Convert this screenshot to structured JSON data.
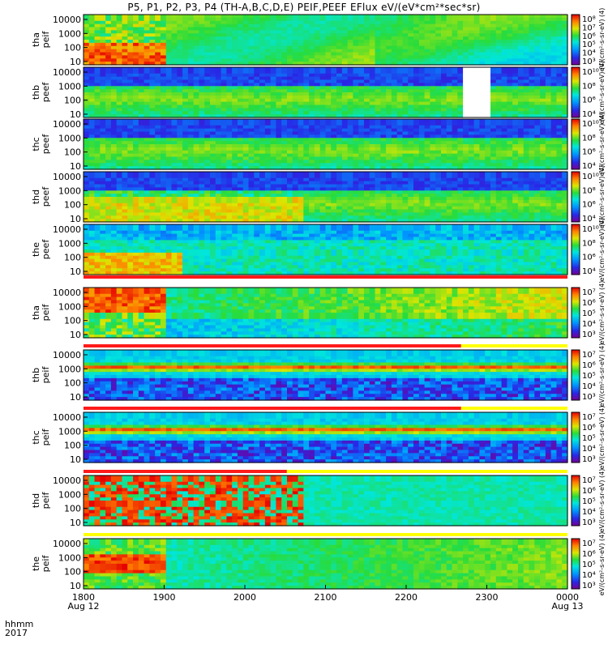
{
  "title": "P5, P1, P2, P3, P4 (TH-A,B,C,D,E) PEIF,PEEF EFlux eV/(eV*cm²*sec*sr)",
  "corner_labels": {
    "line1": "hhmm",
    "line2": "2017"
  },
  "colors": {
    "flag_red": "#ff1a1a",
    "flag_yellow": "#ffff00",
    "frame": "#000000"
  },
  "chart_data": {
    "type": "heatmap",
    "title": "P5, P1, P2, P3, P4 (TH-A,B,C,D,E) PEIF,PEEF EFlux eV/(eV*cm²*sec*sr)",
    "xlabel": "hhmm 2017",
    "x_ticks": [
      {
        "label": "1800",
        "sub": "Aug 12"
      },
      {
        "label": "1900",
        "sub": ""
      },
      {
        "label": "2000",
        "sub": ""
      },
      {
        "label": "2100",
        "sub": ""
      },
      {
        "label": "2200",
        "sub": ""
      },
      {
        "label": "2300",
        "sub": ""
      },
      {
        "label": "0000",
        "sub": "Aug 13"
      }
    ],
    "xlim": [
      "2017-08-12 18:00",
      "2017-08-13 00:00"
    ],
    "y_scale": "log",
    "colorbar_unit_label": "[eV/(cm²-s-sr-eV)]",
    "panels": [
      {
        "ylabel": [
          "tha",
          "peif"
        ],
        "y_ticks": [
          "10000",
          "1000",
          "100",
          "10"
        ],
        "cbar_ticks": [
          "10⁸",
          "10⁷",
          "10⁶",
          "10⁵",
          "10⁴",
          "10³"
        ],
        "cbar_label": "eV/(cm²-s-sr-eV) (4)"
      },
      {
        "ylabel": [
          "thb",
          "peef"
        ],
        "y_ticks": [
          "10000",
          "1000",
          "100",
          "10"
        ],
        "cbar_ticks": [
          "10¹⁰",
          "10⁸",
          "10⁶",
          "10⁴"
        ],
        "cbar_label": "eV/(cm²-s-sr-eV) (4)"
      },
      {
        "ylabel": [
          "thc",
          "peef"
        ],
        "y_ticks": [
          "10000",
          "1000",
          "100",
          "10"
        ],
        "cbar_ticks": [
          "10¹⁰",
          "10⁸",
          "10⁶",
          "10⁴"
        ],
        "cbar_label": "eV/(cm²-s-sr-eV) (4)"
      },
      {
        "ylabel": [
          "thd",
          "peef"
        ],
        "y_ticks": [
          "10000",
          "1000",
          "100",
          "10"
        ],
        "cbar_ticks": [
          "10¹⁰",
          "10⁸",
          "10⁶",
          "10⁴"
        ],
        "cbar_label": "eV/(cm²-s-sr-eV) (4)"
      },
      {
        "ylabel": [
          "the",
          "peef"
        ],
        "y_ticks": [
          "10000",
          "1000",
          "100",
          "10"
        ],
        "cbar_ticks": [
          "10¹⁰",
          "10⁸",
          "10⁶",
          "10⁴"
        ],
        "cbar_label": "eV/(cm²-s-sr-eV) (4)"
      },
      {
        "ylabel": [
          "tha",
          "peif"
        ],
        "y_ticks": [
          "10000",
          "1000",
          "100",
          "10"
        ],
        "cbar_ticks": [
          "10⁷",
          "10⁶",
          "10⁵",
          "10⁴",
          "10³"
        ],
        "cbar_label": "eV/(cm²-s-sr-eV) (4)"
      },
      {
        "ylabel": [
          "thb",
          "peif"
        ],
        "y_ticks": [
          "10000",
          "1000",
          "100",
          "10"
        ],
        "cbar_ticks": [
          "10⁷",
          "10⁶",
          "10⁵",
          "10⁴",
          "10³"
        ],
        "cbar_label": "eV/(cm²-s-sr-eV) (4)"
      },
      {
        "ylabel": [
          "thc",
          "peif"
        ],
        "y_ticks": [
          "10000",
          "1000",
          "100",
          "10"
        ],
        "cbar_ticks": [
          "10⁷",
          "10⁶",
          "10⁵",
          "10⁴",
          "10³"
        ],
        "cbar_label": "eV/(cm²-s-sr-eV) (4)"
      },
      {
        "ylabel": [
          "thd",
          "peif"
        ],
        "y_ticks": [
          "10000",
          "1000",
          "100",
          "10"
        ],
        "cbar_ticks": [
          "10⁷",
          "10⁶",
          "10⁵",
          "10⁴",
          "10³"
        ],
        "cbar_label": "eV/(cm²-s-sr-eV) (4)"
      },
      {
        "ylabel": [
          "the",
          "peif"
        ],
        "y_ticks": [
          "10000",
          "1000",
          "100",
          "10"
        ],
        "cbar_ticks": [
          "10⁷",
          "10⁶",
          "10⁵",
          "10⁴",
          "10³"
        ],
        "cbar_label": "eV/(cm²-s-sr-eV) (4)"
      }
    ]
  }
}
